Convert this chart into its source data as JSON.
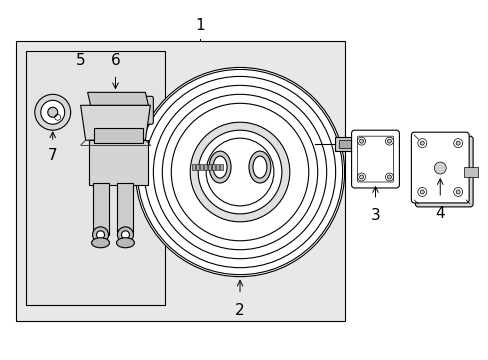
{
  "bg_color": "#ffffff",
  "line_color": "#000000",
  "gray_bg": "#e8e8e8",
  "gray_inner": "#e4e4e4",
  "gray_part": "#d0d0d0",
  "label_1": "1",
  "label_2": "2",
  "label_3": "3",
  "label_4": "4",
  "label_5": "5",
  "label_6": "6",
  "label_7": "7",
  "font_size": 10,
  "dpi": 100,
  "fig_w": 4.89,
  "fig_h": 3.6
}
